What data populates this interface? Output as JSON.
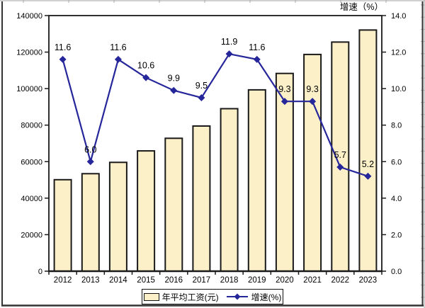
{
  "right_axis_title": "增速（%）",
  "legend": {
    "bar_label": "年平均工资(元)",
    "line_label": "增速(%)"
  },
  "chart_data": {
    "type": "combo: bar (left axis) + line (right axis)",
    "categories": [
      "2012",
      "2013",
      "2014",
      "2015",
      "2016",
      "2017",
      "2018",
      "2019",
      "2020",
      "2021",
      "2022",
      "2023"
    ],
    "series": [
      {
        "name": "年平均工资(元)",
        "type": "bar",
        "axis": "left",
        "values": [
          50100,
          53400,
          59600,
          65900,
          72800,
          79500,
          89000,
          99300,
          108300,
          118700,
          125500,
          132100
        ]
      },
      {
        "name": "增速(%)",
        "type": "line",
        "axis": "right",
        "values": [
          11.6,
          6.0,
          11.6,
          10.6,
          9.9,
          9.5,
          11.9,
          11.6,
          9.3,
          9.3,
          5.7,
          5.2
        ],
        "point_labels": [
          "11.6",
          "6.0",
          "11.6",
          "10.6",
          "9.9",
          "9.5",
          "11.9",
          "11.6",
          "9.3",
          "9.3",
          "5.7",
          "5.2"
        ]
      }
    ],
    "left_axis": {
      "min": 0,
      "max": 140000,
      "step": 20000,
      "tick_labels": [
        "0",
        "20000",
        "40000",
        "60000",
        "80000",
        "100000",
        "120000",
        "140000"
      ]
    },
    "right_axis": {
      "min": 0,
      "max": 14,
      "step": 2,
      "title": "增速（%）",
      "tick_labels": [
        "0.0",
        "2.0",
        "4.0",
        "6.0",
        "8.0",
        "10.0",
        "12.0",
        "14.0"
      ]
    },
    "grid": "off",
    "legend_position": "bottom-center",
    "colors": {
      "bar_fill": "#FCF0C8",
      "bar_border": "#1a1a1a",
      "line": "#26269B",
      "axis": "#1a1a1a",
      "frame": "#333333",
      "sheet_grid": "#b5b5b5"
    }
  }
}
